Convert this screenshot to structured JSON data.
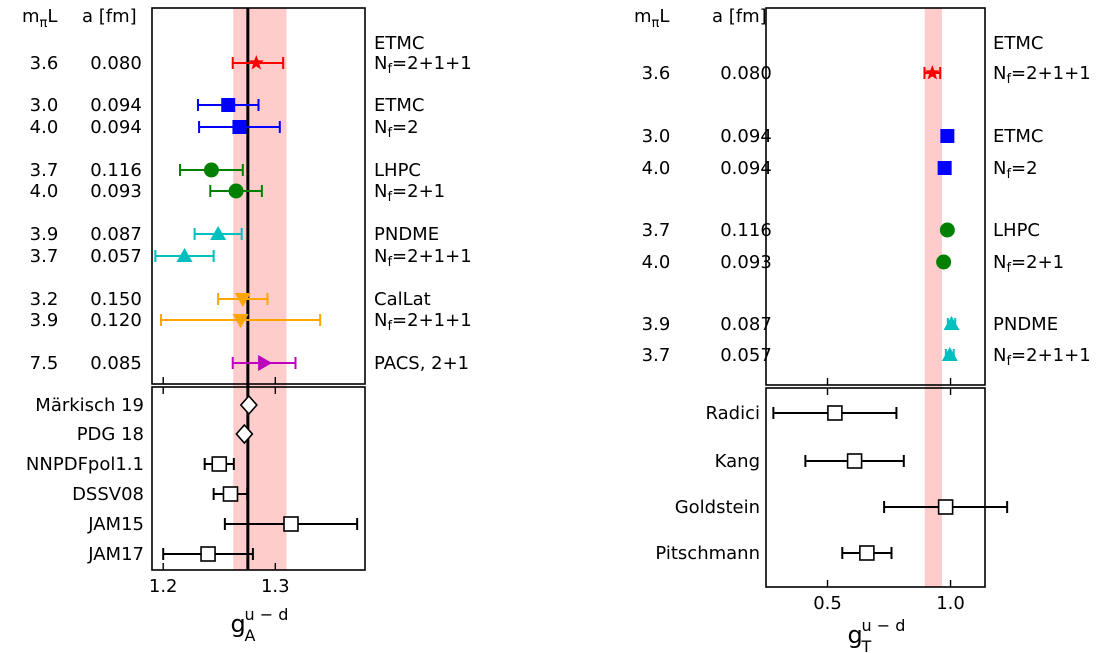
{
  "chart_data": [
    {
      "type": "scatter",
      "xlabel": "g",
      "xlabel_sub": "A",
      "xlabel_sup": "u − d",
      "xlim": [
        1.19,
        1.38
      ],
      "xticks": [
        1.2,
        1.3
      ],
      "header_mpiL": "m",
      "header_mpiL_sub": "π",
      "header_mpiL_tail": "L",
      "header_a": "a [fm]",
      "band": {
        "lo": 1.2625,
        "hi": 1.31,
        "color": "#ffcccc"
      },
      "vline": 1.2755,
      "lattice": [
        {
          "mpiL": "3.6",
          "a": "0.080",
          "x": 1.283,
          "xerr_lo": 0.021,
          "xerr_hi": 0.024,
          "marker": "star",
          "color": "#ff0000"
        },
        {
          "mpiL": "3.0",
          "a": "0.094",
          "x": 1.258,
          "xerr_lo": 0.027,
          "xerr_hi": 0.027,
          "marker": "square",
          "color": "#0000ff"
        },
        {
          "mpiL": "4.0",
          "a": "0.094",
          "x": 1.268,
          "xerr_lo": 0.036,
          "xerr_hi": 0.036,
          "marker": "square",
          "color": "#0000ff"
        },
        {
          "mpiL": "3.7",
          "a": "0.116",
          "x": 1.243,
          "xerr_lo": 0.028,
          "xerr_hi": 0.028,
          "marker": "circle",
          "color": "#008000"
        },
        {
          "mpiL": "4.0",
          "a": "0.093",
          "x": 1.265,
          "xerr_lo": 0.023,
          "xerr_hi": 0.023,
          "marker": "circle",
          "color": "#008000"
        },
        {
          "mpiL": "3.9",
          "a": "0.087",
          "x": 1.249,
          "xerr_lo": 0.021,
          "xerr_hi": 0.021,
          "marker": "triangle-up",
          "color": "#00bfbf"
        },
        {
          "mpiL": "3.7",
          "a": "0.057",
          "x": 1.219,
          "xerr_lo": 0.026,
          "xerr_hi": 0.026,
          "marker": "triangle-up",
          "color": "#00bfbf"
        },
        {
          "mpiL": "3.2",
          "a": "0.150",
          "x": 1.271,
          "xerr_lo": 0.022,
          "xerr_hi": 0.022,
          "marker": "triangle-down",
          "color": "#ffa500"
        },
        {
          "mpiL": "3.9",
          "a": "0.120",
          "x": 1.269,
          "xerr_lo": 0.071,
          "xerr_hi": 0.071,
          "marker": "triangle-down",
          "color": "#ffa500"
        },
        {
          "mpiL": "7.5",
          "a": "0.085",
          "x": 1.29,
          "xerr_lo": 0.028,
          "xerr_hi": 0.028,
          "marker": "triangle-right",
          "color": "#bf00bf"
        }
      ],
      "collaborations": [
        {
          "name": "ETMC",
          "nf": "2+1+1",
          "nf_prefix": "N",
          "nf_sub": "f",
          "eq": "="
        },
        {
          "name": "ETMC",
          "nf": "2",
          "nf_prefix": "N",
          "nf_sub": "f",
          "eq": "="
        },
        {
          "name": "LHPC",
          "nf": "2+1",
          "nf_prefix": "N",
          "nf_sub": "f",
          "eq": "="
        },
        {
          "name": "PNDME",
          "nf": "2+1+1",
          "nf_prefix": "N",
          "nf_sub": "f",
          "eq": "="
        },
        {
          "name": "CalLat",
          "nf": "2+1+1",
          "nf_prefix": "N",
          "nf_sub": "f",
          "eq": "="
        },
        {
          "name": "PACS, 2+1",
          "nf": "",
          "nf_prefix": "",
          "nf_sub": "",
          "eq": ""
        }
      ],
      "phenomenology": [
        {
          "name": "Märkisch 19",
          "x": 1.2764,
          "xerr_lo": 0.0006,
          "xerr_hi": 0.0006,
          "marker": "diamond-open"
        },
        {
          "name": "PDG 18",
          "x": 1.2724,
          "xerr_lo": 0.0023,
          "xerr_hi": 0.0023,
          "marker": "diamond-open"
        },
        {
          "name": "NNPDFpol1.1",
          "x": 1.25,
          "xerr_lo": 0.013,
          "xerr_hi": 0.013,
          "marker": "square-open"
        },
        {
          "name": "DSSV08",
          "x": 1.26,
          "xerr_lo": 0.015,
          "xerr_hi": 0.015,
          "marker": "square-open"
        },
        {
          "name": "JAM15",
          "x": 1.314,
          "xerr_lo": 0.059,
          "xerr_hi": 0.059,
          "marker": "square-open"
        },
        {
          "name": "JAM17",
          "x": 1.24,
          "xerr_lo": 0.04,
          "xerr_hi": 0.04,
          "marker": "square-open"
        }
      ]
    },
    {
      "type": "scatter",
      "xlabel": "g",
      "xlabel_sub": "T",
      "xlabel_sup": "u − d",
      "xlim": [
        0.25,
        1.14
      ],
      "xticks": [
        0.5,
        1.0
      ],
      "xtick_labels": [
        "0.5",
        "1.0"
      ],
      "header_mpiL": "m",
      "header_mpiL_sub": "π",
      "header_mpiL_tail": "L",
      "header_a": "a [fm]",
      "band": {
        "lo": 0.895,
        "hi": 0.965,
        "color": "#ffcccc"
      },
      "lattice": [
        {
          "mpiL": "3.6",
          "a": "0.080",
          "x": 0.926,
          "xerr_lo": 0.032,
          "xerr_hi": 0.032,
          "marker": "star",
          "color": "#ff0000"
        },
        {
          "mpiL": "3.0",
          "a": "0.094",
          "x": 0.987,
          "xerr_lo": 0.0,
          "xerr_hi": 0.0,
          "marker": "square",
          "color": "#0000ff"
        },
        {
          "mpiL": "4.0",
          "a": "0.094",
          "x": 0.976,
          "xerr_lo": 0.0,
          "xerr_hi": 0.0,
          "marker": "square",
          "color": "#0000ff"
        },
        {
          "mpiL": "3.7",
          "a": "0.116",
          "x": 0.987,
          "xerr_lo": 0.0,
          "xerr_hi": 0.0,
          "marker": "circle",
          "color": "#008000"
        },
        {
          "mpiL": "4.0",
          "a": "0.093",
          "x": 0.972,
          "xerr_lo": 0.0,
          "xerr_hi": 0.0,
          "marker": "circle",
          "color": "#008000"
        },
        {
          "mpiL": "3.9",
          "a": "0.087",
          "x": 1.004,
          "xerr_lo": 0.015,
          "xerr_hi": 0.015,
          "marker": "triangle-up",
          "color": "#00bfbf"
        },
        {
          "mpiL": "3.7",
          "a": "0.057",
          "x": 0.997,
          "xerr_lo": 0.016,
          "xerr_hi": 0.016,
          "marker": "triangle-up",
          "color": "#00bfbf"
        }
      ],
      "collaborations": [
        {
          "name": "ETMC",
          "nf": "2+1+1",
          "nf_prefix": "N",
          "nf_sub": "f",
          "eq": "="
        },
        {
          "name": "ETMC",
          "nf": "2",
          "nf_prefix": "N",
          "nf_sub": "f",
          "eq": "="
        },
        {
          "name": "LHPC",
          "nf": "2+1",
          "nf_prefix": "N",
          "nf_sub": "f",
          "eq": "="
        },
        {
          "name": "PNDME",
          "nf": "2+1+1",
          "nf_prefix": "N",
          "nf_sub": "f",
          "eq": "="
        }
      ],
      "phenomenology": [
        {
          "name": "Radici",
          "x": 0.53,
          "xerr_lo": 0.25,
          "xerr_hi": 0.25,
          "marker": "square-open"
        },
        {
          "name": "Kang",
          "x": 0.61,
          "xerr_lo": 0.2,
          "xerr_hi": 0.2,
          "marker": "square-open"
        },
        {
          "name": "Goldstein",
          "x": 0.98,
          "xerr_lo": 0.25,
          "xerr_hi": 0.25,
          "marker": "square-open"
        },
        {
          "name": "Pitschmann",
          "x": 0.66,
          "xerr_lo": 0.1,
          "xerr_hi": 0.1,
          "marker": "square-open"
        }
      ]
    }
  ]
}
